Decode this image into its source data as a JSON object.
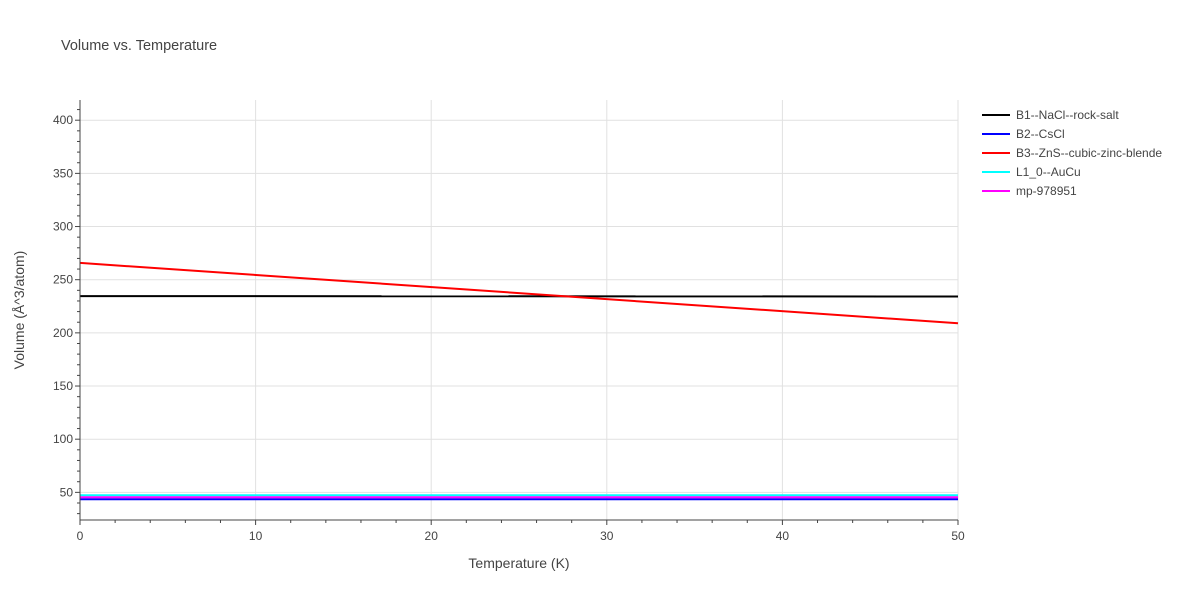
{
  "chart_data": {
    "type": "line",
    "title": "Volume vs. Temperature",
    "xlabel": "Temperature (K)",
    "ylabel": "Volume (Å^3/atom)",
    "xlim": [
      0,
      50
    ],
    "ylim": [
      24,
      419
    ],
    "xticks": [
      0,
      10,
      20,
      30,
      40,
      50
    ],
    "yticks": [
      50,
      100,
      150,
      200,
      250,
      300,
      350,
      400
    ],
    "grid": true,
    "legend_position": "top-right",
    "series": [
      {
        "name": "B1--NaCl--rock-salt",
        "color": "#000000",
        "x": [
          0,
          50
        ],
        "y": [
          234.6,
          234.2
        ]
      },
      {
        "name": "B2--CsCl",
        "color": "#0000ff",
        "x": [
          0,
          50
        ],
        "y": [
          43.5,
          43.5
        ]
      },
      {
        "name": "B3--ZnS--cubic-zinc-blende",
        "color": "#ff0000",
        "x": [
          0,
          50
        ],
        "y": [
          265.8,
          209.0
        ]
      },
      {
        "name": "L1_0--AuCu",
        "color": "#00ffff",
        "x": [
          0,
          50
        ],
        "y": [
          47.3,
          47.3
        ]
      },
      {
        "name": "mp-978951",
        "color": "#ff00ff",
        "x": [
          0,
          50
        ],
        "y": [
          45.4,
          45.4
        ]
      }
    ]
  }
}
